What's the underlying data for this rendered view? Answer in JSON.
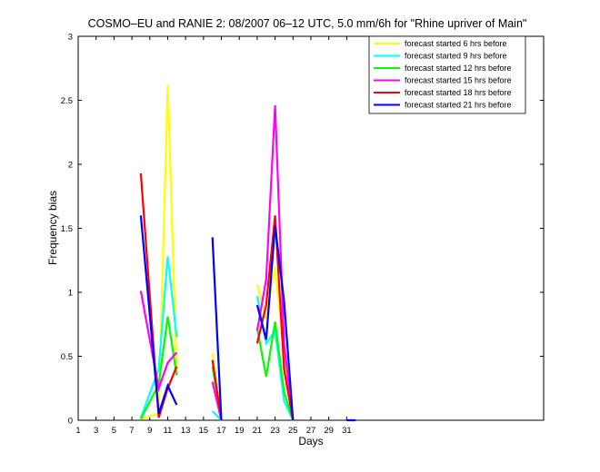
{
  "chart_data": {
    "type": "line",
    "title": "COSMO–EU and RANIE 2: 08/2007 06–12 UTC, 5.0 mm/6h for \"Rhine upriver of Main\"",
    "xlabel": "Days",
    "ylabel": "Frequency bias",
    "xlim": [
      1,
      53
    ],
    "ylim": [
      0,
      3
    ],
    "xticks": [
      1,
      3,
      5,
      7,
      9,
      11,
      13,
      15,
      17,
      19,
      21,
      23,
      25,
      27,
      29,
      31
    ],
    "yticks": [
      0,
      0.5,
      1,
      1.5,
      2,
      2.5,
      3
    ],
    "grid": false,
    "legend_position": "top-right",
    "series": [
      {
        "name": "forecast started 6 hrs before",
        "color": "#ffff00",
        "x": [
          8,
          10,
          11,
          12,
          null,
          16,
          17,
          null,
          21,
          22,
          23,
          24,
          25
        ],
        "y": [
          0.01,
          0.05,
          2.62,
          0.4,
          null,
          0.52,
          0.0,
          null,
          1.06,
          0.8,
          1.2,
          0.5,
          0.0
        ]
      },
      {
        "name": "forecast started 9 hrs before",
        "color": "#00ffff",
        "x": [
          8,
          10,
          11,
          12,
          null,
          16,
          17,
          null,
          21,
          22,
          23,
          24,
          25
        ],
        "y": [
          0.02,
          0.4,
          1.28,
          0.65,
          null,
          0.07,
          0.0,
          null,
          0.97,
          0.6,
          0.7,
          0.15,
          0.0
        ]
      },
      {
        "name": "forecast started 12 hrs before",
        "color": "#00ff00",
        "x": [
          8,
          10,
          11,
          12,
          null,
          16,
          17,
          null,
          21,
          22,
          23,
          24,
          25
        ],
        "y": [
          0.01,
          0.28,
          0.81,
          0.35,
          null,
          0.42,
          0.0,
          null,
          0.72,
          0.34,
          0.77,
          0.22,
          0.0
        ]
      },
      {
        "name": "forecast started 15 hrs before",
        "color": "#ff00ff",
        "x": [
          8,
          10,
          11,
          12,
          null,
          16,
          17,
          null,
          21,
          22,
          23,
          24,
          25
        ],
        "y": [
          1.01,
          0.25,
          0.45,
          0.53,
          null,
          0.3,
          0.0,
          null,
          0.7,
          1.1,
          2.46,
          0.6,
          0.0
        ]
      },
      {
        "name": "forecast started 18 hrs before",
        "color": "#ff0000",
        "x": [
          8,
          10,
          11,
          12,
          null,
          16,
          17,
          null,
          21,
          22,
          23,
          24,
          25
        ],
        "y": [
          1.93,
          0.02,
          0.25,
          0.42,
          null,
          0.47,
          0.0,
          null,
          0.6,
          0.9,
          1.6,
          0.4,
          0.0
        ]
      },
      {
        "name": "forecast started 21 hrs before",
        "color": "#0000ff",
        "x": [
          8,
          10,
          11,
          12,
          null,
          16,
          17,
          null,
          21,
          22,
          23,
          24,
          25,
          null,
          31,
          32
        ],
        "y": [
          1.6,
          0.05,
          0.27,
          0.12,
          null,
          1.43,
          0.0,
          null,
          0.9,
          0.63,
          1.52,
          0.93,
          0.0,
          null,
          0.0,
          0.0
        ]
      }
    ]
  }
}
